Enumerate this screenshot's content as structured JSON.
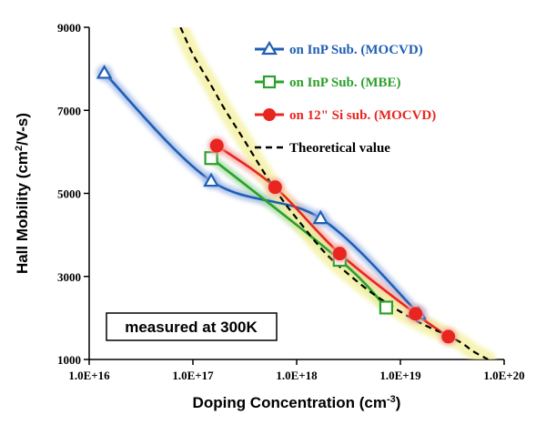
{
  "chart_data": {
    "type": "line",
    "x_scale": "log",
    "xlabel": "Doping Concentration (cm",
    "xlabel_sup": "-3",
    "xlabel_end": ")",
    "ylabel": "Hall Mobility (cm",
    "ylabel_sup": "2",
    "ylabel_end": "/V-s)",
    "xlim": [
      1e+16,
      1e+20
    ],
    "ylim": [
      1000,
      9000
    ],
    "x_ticks": [
      1e+16,
      1e+17,
      1e+18,
      1e+19,
      1e+20
    ],
    "x_tick_labels": [
      "1.0E+16",
      "1.0E+17",
      "1.0E+18",
      "1.0E+19",
      "1.0E+20"
    ],
    "y_ticks": [
      1000,
      3000,
      5000,
      7000,
      9000
    ],
    "y_tick_labels": [
      "1000",
      "3000",
      "5000",
      "7000",
      "9000"
    ],
    "grid": false,
    "legend_position": "top-right",
    "annotation": "measured at 300K",
    "series": [
      {
        "name": "on InP Sub. (MOCVD)",
        "color": "#1f5fb4",
        "glow": "#9fb8e6",
        "marker": "triangle",
        "x": [
          1.4e+16,
          1.5e+17,
          1.7e+18,
          1.5e+19
        ],
        "y": [
          7900,
          5300,
          4400,
          2100
        ]
      },
      {
        "name": "on InP Sub. (MBE)",
        "color": "#2ca02c",
        "glow": "#a8dca8",
        "marker": "square",
        "x": [
          1.5e+17,
          2.6e+18,
          7.3e+18
        ],
        "y": [
          5850,
          3400,
          2250
        ]
      },
      {
        "name": "on 12\" Si sub. (MOCVD)",
        "color": "#e8251f",
        "glow": "#f5a8a6",
        "marker": "circle",
        "x": [
          1.7e+17,
          6.2e+17,
          2.6e+18,
          1.4e+19,
          2.9e+19
        ],
        "y": [
          6150,
          5150,
          3550,
          2100,
          1550
        ]
      },
      {
        "name": "Theoretical value",
        "color": "#000000",
        "glow": "#f3f09a",
        "marker": "none",
        "dashed": true,
        "x": [
          7.6e+16,
          1e+17,
          1.5e+17,
          2e+17,
          3e+17,
          5e+17,
          7.5e+17,
          1e+18,
          1.5e+18,
          2e+18,
          3e+18,
          5e+18,
          7.5e+18,
          1e+19,
          1.5e+19,
          2e+19,
          3e+19,
          4e+19,
          5e+19,
          7e+19
        ],
        "y": [
          9000,
          8350,
          7600,
          7050,
          6350,
          5450,
          4800,
          4400,
          3850,
          3500,
          3100,
          2650,
          2350,
          2150,
          1900,
          1750,
          1550,
          1380,
          1200,
          1000
        ]
      }
    ]
  }
}
